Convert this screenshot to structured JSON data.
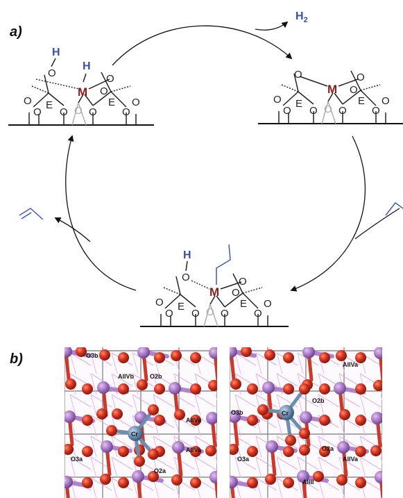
{
  "panels": {
    "a": "a)",
    "b": "b)"
  },
  "cycle": {
    "h2_label": "H",
    "h2_subscript": "2",
    "hydrogen_label": "H",
    "metal_label": "M",
    "element_label": "E",
    "oxygen_label": "O"
  },
  "structures": {
    "cr_label": "Cr",
    "left": {
      "sites": [
        "O3b",
        "AlIVb",
        "O2b",
        "AlIVa",
        "AlIVa",
        "O3a",
        "O2a"
      ]
    },
    "right": {
      "sites": [
        "AlIVa",
        "O2b",
        "O3b",
        "O3a",
        "O2a",
        "AlIVa",
        "AlIII"
      ]
    }
  },
  "colors": {
    "hydrogen": "#3b4fa8",
    "metal": "#8b1a1a",
    "oxygen_atom": "#d2301e",
    "aluminum_atom": "#a573c4",
    "chromium_atom": "#6b8db0",
    "alkene": "#3b5bb8"
  }
}
